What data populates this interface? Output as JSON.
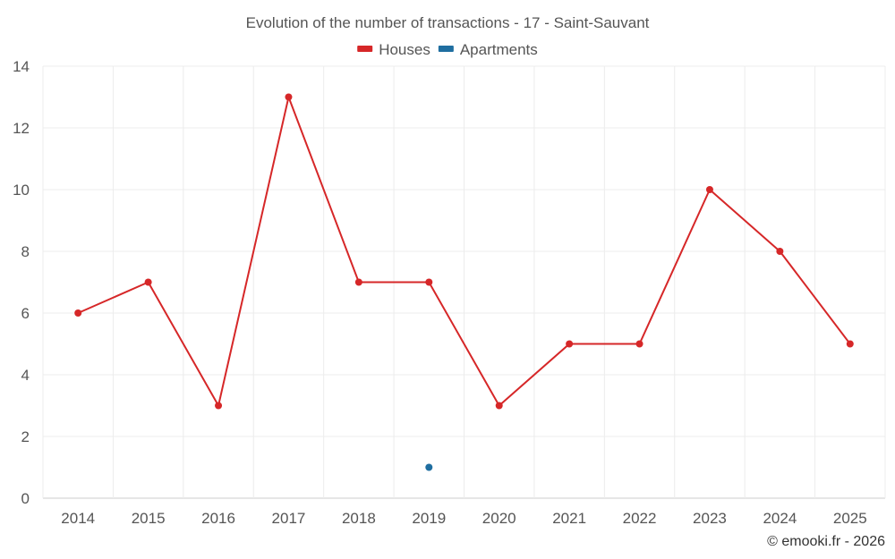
{
  "chart_data": {
    "type": "line",
    "title": "Evolution of the number of transactions - 17 - Saint-Sauvant",
    "categories": [
      "2014",
      "2015",
      "2016",
      "2017",
      "2018",
      "2019",
      "2020",
      "2021",
      "2022",
      "2023",
      "2024",
      "2025"
    ],
    "series": [
      {
        "name": "Houses",
        "color": "#d62728",
        "values": [
          6,
          7,
          3,
          13,
          7,
          7,
          3,
          5,
          5,
          10,
          8,
          5
        ]
      },
      {
        "name": "Apartments",
        "color": "#1f6ea0",
        "values": [
          null,
          null,
          null,
          null,
          null,
          1,
          null,
          null,
          null,
          null,
          null,
          null
        ]
      }
    ],
    "ylim": [
      0,
      14
    ],
    "yticks": [
      "0",
      "2",
      "4",
      "6",
      "8",
      "10",
      "12",
      "14"
    ],
    "xlabel": "",
    "ylabel": "",
    "grid": true,
    "legend": "top-center",
    "credit": "© emooki.fr - 2026"
  }
}
